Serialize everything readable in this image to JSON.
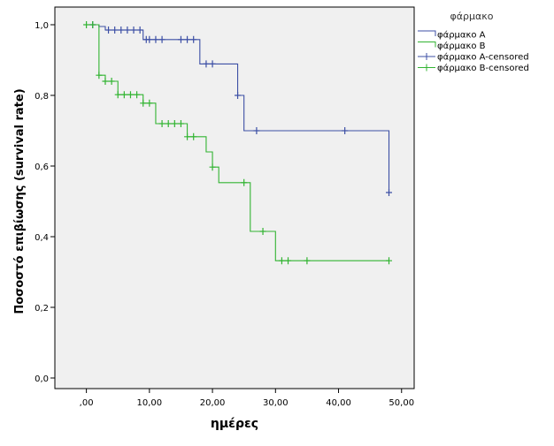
{
  "chart_data": {
    "type": "line",
    "subtype": "kaplan-meier step",
    "title": "",
    "xlabel": "ημέρες",
    "ylabel": "Ποσοστό επιβίωσης (survival rate)",
    "xlim": [
      -5,
      52
    ],
    "ylim": [
      -0.03,
      1.05
    ],
    "x_ticks": [
      0,
      10,
      20,
      30,
      40,
      50
    ],
    "x_tick_labels": [
      ",00",
      "10,00",
      "20,00",
      "30,00",
      "40,00",
      "50,00"
    ],
    "y_ticks": [
      0,
      0.2,
      0.4,
      0.6,
      0.8,
      1.0
    ],
    "y_tick_labels": [
      "0,0",
      "0,2",
      "0,4",
      "0,6",
      "0,8",
      "1,0"
    ],
    "grid": false,
    "plot_background": "#f0f0f0",
    "legend": {
      "title": "φάρμακο",
      "placement": "outside-right-top",
      "entries": [
        {
          "label": "φάρμακο A",
          "color": "#3c4fa5",
          "marker": "line"
        },
        {
          "label": "φάρμακο B",
          "color": "#32b432",
          "marker": "line"
        },
        {
          "label": "φάρμακο A-censored",
          "color": "#3c4fa5",
          "marker": "plus"
        },
        {
          "label": "φάρμακο B-censored",
          "color": "#32b432",
          "marker": "plus"
        }
      ]
    },
    "series": [
      {
        "name": "φάρμακο A",
        "color": "#3c4fa5",
        "steps": [
          [
            0,
            1.0
          ],
          [
            2,
            0.995
          ],
          [
            3,
            0.985
          ],
          [
            9,
            0.958
          ],
          [
            18,
            0.889
          ],
          [
            24,
            0.8
          ],
          [
            25,
            0.7
          ],
          [
            48,
            0.525
          ]
        ],
        "end_x": 48,
        "censored": [
          [
            1,
            1.0
          ],
          [
            3.5,
            0.985
          ],
          [
            4.5,
            0.985
          ],
          [
            5.5,
            0.985
          ],
          [
            6.5,
            0.985
          ],
          [
            7.5,
            0.985
          ],
          [
            8.5,
            0.985
          ],
          [
            9.5,
            0.958
          ],
          [
            10,
            0.958
          ],
          [
            11,
            0.958
          ],
          [
            12,
            0.958
          ],
          [
            15,
            0.958
          ],
          [
            16,
            0.958
          ],
          [
            17,
            0.958
          ],
          [
            19,
            0.889
          ],
          [
            20,
            0.889
          ],
          [
            24,
            0.8
          ],
          [
            27,
            0.7
          ],
          [
            41,
            0.7
          ],
          [
            48,
            0.525
          ]
        ]
      },
      {
        "name": "φάρμακο B",
        "color": "#32b432",
        "steps": [
          [
            0,
            1.0
          ],
          [
            2,
            0.857
          ],
          [
            3,
            0.84
          ],
          [
            5,
            0.802
          ],
          [
            9,
            0.778
          ],
          [
            11,
            0.72
          ],
          [
            16,
            0.683
          ],
          [
            19,
            0.64
          ],
          [
            20,
            0.597
          ],
          [
            21,
            0.553
          ],
          [
            26,
            0.415
          ],
          [
            30,
            0.332
          ]
        ],
        "end_x": 48,
        "censored": [
          [
            0,
            1.0
          ],
          [
            1,
            1.0
          ],
          [
            2,
            0.857
          ],
          [
            3,
            0.84
          ],
          [
            4,
            0.84
          ],
          [
            5,
            0.802
          ],
          [
            6,
            0.802
          ],
          [
            7,
            0.802
          ],
          [
            8,
            0.802
          ],
          [
            9,
            0.778
          ],
          [
            10,
            0.778
          ],
          [
            12,
            0.72
          ],
          [
            13,
            0.72
          ],
          [
            14,
            0.72
          ],
          [
            15,
            0.72
          ],
          [
            16,
            0.683
          ],
          [
            17,
            0.683
          ],
          [
            20,
            0.597
          ],
          [
            25,
            0.553
          ],
          [
            28,
            0.415
          ],
          [
            31,
            0.332
          ],
          [
            32,
            0.332
          ],
          [
            35,
            0.332
          ],
          [
            48,
            0.332
          ]
        ]
      }
    ]
  }
}
